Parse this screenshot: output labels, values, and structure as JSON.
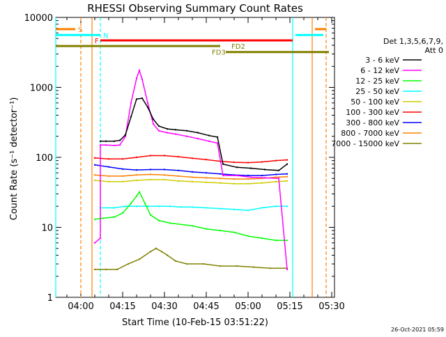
{
  "chart_data": {
    "type": "line",
    "title": "RHESSI Observing Summary Count Rates",
    "xlabel": "Start Time (10-Feb-15 03:51:22)",
    "ylabel": "Count Rate (s⁻¹ detector⁻¹)",
    "y_scale": "log",
    "ylim": [
      1,
      10000
    ],
    "xlim": [
      "03:51",
      "05:31"
    ],
    "x_ticks": [
      "04:00",
      "04:15",
      "04:30",
      "04:45",
      "05:00",
      "05:15",
      "05:30"
    ],
    "y_ticks": [
      "1",
      "10",
      "100",
      "1000",
      "10000"
    ],
    "timestamp": "26-Oct-2021 05:59",
    "legend_title": [
      "Det 1,3,5,6,7,9,",
      "Att 0"
    ],
    "legend_position": "right",
    "series": [
      {
        "name": "3 - 6 keV",
        "color": "#000000",
        "x": [
          "04:07",
          "04:09",
          "04:12",
          "04:14",
          "04:16",
          "04:18",
          "04:20",
          "04:22",
          "04:24",
          "04:26",
          "04:28",
          "04:31",
          "04:34",
          "04:38",
          "04:42",
          "04:46",
          "04:49",
          "04:51",
          "04:56",
          "05:01",
          "05:06",
          "05:11",
          "05:14"
        ],
        "y": [
          170,
          170,
          170,
          175,
          210,
          380,
          680,
          700,
          520,
          350,
          280,
          255,
          248,
          240,
          225,
          205,
          195,
          80,
          72,
          70,
          67,
          65,
          80
        ]
      },
      {
        "name": "6 - 12 keV",
        "color": "#ff00ff",
        "x": [
          "04:05",
          "04:07",
          "04:07",
          "04:09",
          "04:12",
          "04:14",
          "04:16",
          "04:18",
          "04:20",
          "04:21",
          "04:22",
          "04:24",
          "04:26",
          "04:28",
          "04:31",
          "04:34",
          "04:38",
          "04:42",
          "04:46",
          "04:49",
          "04:51",
          "04:56",
          "05:01",
          "05:06",
          "05:11",
          "05:14"
        ],
        "y": [
          6,
          7,
          150,
          150,
          148,
          150,
          200,
          600,
          1350,
          1750,
          1300,
          600,
          300,
          240,
          225,
          215,
          200,
          185,
          170,
          160,
          55,
          55,
          52,
          51,
          50,
          2.5
        ]
      },
      {
        "name": "12 - 25 keV",
        "color": "#00ff00",
        "x": [
          "04:05",
          "04:08",
          "04:12",
          "04:15",
          "04:18",
          "04:20",
          "04:21",
          "04:23",
          "04:25",
          "04:28",
          "04:32",
          "04:40",
          "04:45",
          "04:50",
          "04:55",
          "05:00",
          "05:05",
          "05:10",
          "05:14"
        ],
        "y": [
          13,
          13.5,
          14,
          16,
          22,
          28,
          32,
          22,
          15,
          12.5,
          11.5,
          10.5,
          9.5,
          9,
          8.5,
          7.5,
          7,
          6.5,
          6.5
        ]
      },
      {
        "name": "25 - 50 keV",
        "color": "#00ffff",
        "x": [
          "04:07",
          "04:12",
          "04:16",
          "04:20",
          "04:24",
          "04:28",
          "04:32",
          "04:36",
          "04:40",
          "04:45",
          "04:50",
          "04:55",
          "05:00",
          "05:05",
          "05:10",
          "05:14"
        ],
        "y": [
          19,
          19,
          20,
          20,
          20,
          20,
          20,
          19.5,
          19.5,
          19,
          18.5,
          18,
          17.5,
          19,
          20,
          20
        ]
      },
      {
        "name": "50 - 100 keV",
        "color": "#cccc00",
        "x": [
          "04:05",
          "04:10",
          "04:15",
          "04:20",
          "04:25",
          "04:30",
          "04:35",
          "04:40",
          "04:45",
          "04:50",
          "04:55",
          "05:00",
          "05:05",
          "05:10",
          "05:14"
        ],
        "y": [
          47,
          45,
          45,
          47,
          48,
          48,
          46,
          45,
          44,
          43,
          42,
          42,
          43,
          45,
          46
        ]
      },
      {
        "name": "100 - 300 keV",
        "color": "#ff0000",
        "x": [
          "04:05",
          "04:10",
          "04:15",
          "04:20",
          "04:25",
          "04:30",
          "04:35",
          "04:40",
          "04:45",
          "04:50",
          "04:55",
          "05:00",
          "05:05",
          "05:10",
          "05:14"
        ],
        "y": [
          98,
          95,
          95,
          100,
          106,
          106,
          102,
          97,
          93,
          88,
          85,
          84,
          86,
          90,
          92
        ]
      },
      {
        "name": "300 - 800 keV",
        "color": "#0000ff",
        "x": [
          "04:05",
          "04:10",
          "04:15",
          "04:20",
          "04:25",
          "04:30",
          "04:35",
          "04:40",
          "04:45",
          "04:50",
          "04:55",
          "05:00",
          "05:05",
          "05:10",
          "05:14"
        ],
        "y": [
          78,
          73,
          68,
          66,
          67,
          67,
          65,
          62,
          60,
          58,
          56,
          55,
          55,
          57,
          58
        ]
      },
      {
        "name": "800 - 7000 keV",
        "color": "#ff8000",
        "x": [
          "04:05",
          "04:10",
          "04:15",
          "04:20",
          "04:25",
          "04:30",
          "04:35",
          "04:40",
          "04:45",
          "04:50",
          "04:55",
          "05:00",
          "05:05",
          "05:10",
          "05:14"
        ],
        "y": [
          56,
          54,
          54,
          56,
          57,
          56,
          54,
          52,
          51,
          50,
          49,
          49,
          50,
          52,
          53
        ]
      },
      {
        "name": "7000 - 15000 keV",
        "color": "#808000",
        "x": [
          "04:05",
          "04:09",
          "04:13",
          "04:17",
          "04:21",
          "04:25",
          "04:27",
          "04:29",
          "04:31",
          "04:34",
          "04:38",
          "04:44",
          "04:50",
          "04:56",
          "05:02",
          "05:08",
          "05:14"
        ],
        "y": [
          2.5,
          2.5,
          2.5,
          3,
          3.5,
          4.5,
          5,
          4.5,
          4,
          3.3,
          3,
          3,
          2.8,
          2.8,
          2.7,
          2.6,
          2.6
        ]
      }
    ],
    "flag_bars": [
      {
        "label": "S",
        "color": "#ff8000",
        "y": 6800,
        "segments": [
          [
            "03:51",
            "03:58"
          ],
          [
            "05:24",
            "05:28"
          ]
        ],
        "label_at": "03:59"
      },
      {
        "label": "N",
        "color": "#00ffff",
        "y": 5600,
        "segments": [
          [
            "03:51",
            "04:07"
          ],
          [
            "05:17",
            "05:27"
          ]
        ],
        "label_at": "04:08"
      },
      {
        "label": "F",
        "color": "#ff0000",
        "y": 4700,
        "segments": [
          [
            "04:07",
            "05:16"
          ]
        ],
        "label_at": "04:05"
      },
      {
        "label": "FD2",
        "color": "#808000",
        "y": 3900,
        "segments": [
          [
            "03:51",
            "04:50"
          ]
        ],
        "label_at": "04:54"
      },
      {
        "label": "FD3",
        "color": "#808000",
        "y": 3200,
        "segments": [
          [
            "04:52",
            "05:29"
          ]
        ],
        "label_at": "04:47"
      }
    ],
    "vlines": [
      {
        "x": "03:51",
        "color": "#00ffff",
        "style": "solid"
      },
      {
        "x": "04:00",
        "color": "#ff8000",
        "style": "dashed"
      },
      {
        "x": "04:04",
        "color": "#ff8000",
        "style": "solid"
      },
      {
        "x": "04:07",
        "color": "#00ffff",
        "style": "dashed"
      },
      {
        "x": "05:16",
        "color": "#00ffff",
        "style": "solid"
      },
      {
        "x": "05:23",
        "color": "#ff8000",
        "style": "solid"
      },
      {
        "x": "05:28",
        "color": "#ff8000",
        "style": "dashed"
      }
    ]
  }
}
